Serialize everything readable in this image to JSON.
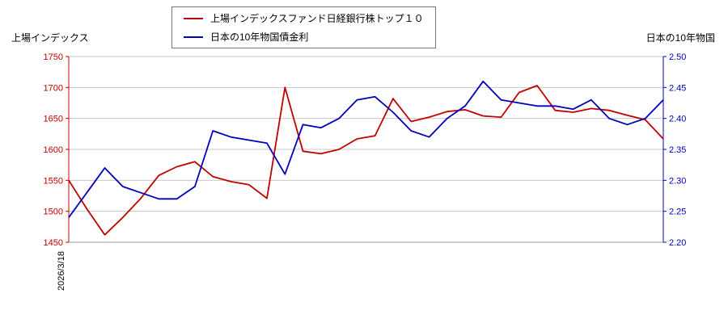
{
  "axis_titles": {
    "left": "上場インデックス",
    "right": "日本の10年物国"
  },
  "x_axis": {
    "first_label": "2026/3/18"
  },
  "chart_data": {
    "type": "line",
    "title": "",
    "legend_position": "top-center",
    "grid": "horizontal",
    "left_axis": {
      "title": "上場インデックス",
      "ticks": [
        "1750",
        "1700",
        "1650",
        "1600",
        "1550",
        "1500",
        "1450"
      ],
      "range": [
        1450,
        1750
      ]
    },
    "right_axis": {
      "title": "日本の10年物国",
      "ticks": [
        "2.50",
        "2.45",
        "2.40",
        "2.35",
        "2.30",
        "2.25",
        "2.20"
      ],
      "range": [
        2.2,
        2.5
      ]
    },
    "colors": {
      "left_axis": "#c00000",
      "right_axis": "#0000bb",
      "grid": "#c9c9c9",
      "baseline": "#999999"
    },
    "series": [
      {
        "name": "上場インデックスファンド日経銀行株トップ１０",
        "axis": "left",
        "color": "#c00000",
        "values": [
          1550,
          1504,
          1462,
          1490,
          1521,
          1558,
          1572,
          1580,
          1556,
          1548,
          1543,
          1521,
          1700,
          1597,
          1593,
          1600,
          1617,
          1622,
          1682,
          1645,
          1652,
          1661,
          1664,
          1654,
          1652,
          1692,
          1703,
          1663,
          1660,
          1666,
          1663,
          1655,
          1648,
          1617
        ]
      },
      {
        "name": "日本の10年物国債金利",
        "axis": "right",
        "color": "#0000bb",
        "values": [
          2.24,
          2.28,
          2.32,
          2.29,
          2.28,
          2.27,
          2.27,
          2.29,
          2.38,
          2.37,
          2.365,
          2.36,
          2.31,
          2.39,
          2.385,
          2.4,
          2.43,
          2.435,
          2.41,
          2.38,
          2.37,
          2.4,
          2.42,
          2.46,
          2.43,
          2.425,
          2.42,
          2.42,
          2.415,
          2.43,
          2.4,
          2.39,
          2.4,
          2.43
        ]
      }
    ]
  }
}
